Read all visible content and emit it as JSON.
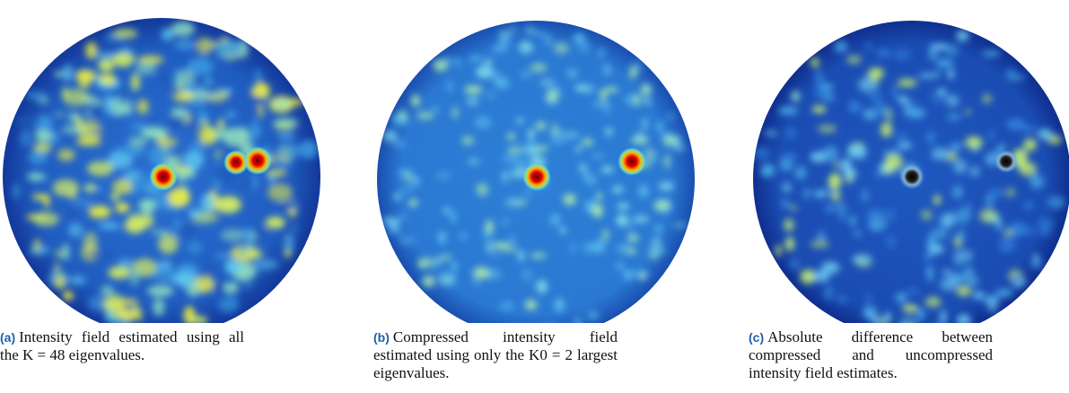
{
  "figure": {
    "panels": [
      {
        "label": "(a)",
        "caption": "Intensity field estimated using all the K = 48 eigenvalues."
      },
      {
        "label": "(b)",
        "caption": "Compressed intensity field estimated using only the K0 = 2 largest eigenvalues."
      },
      {
        "label": "(c)",
        "caption": "Absolute difference between compressed and uncompressed intensity field estimates."
      }
    ]
  }
}
